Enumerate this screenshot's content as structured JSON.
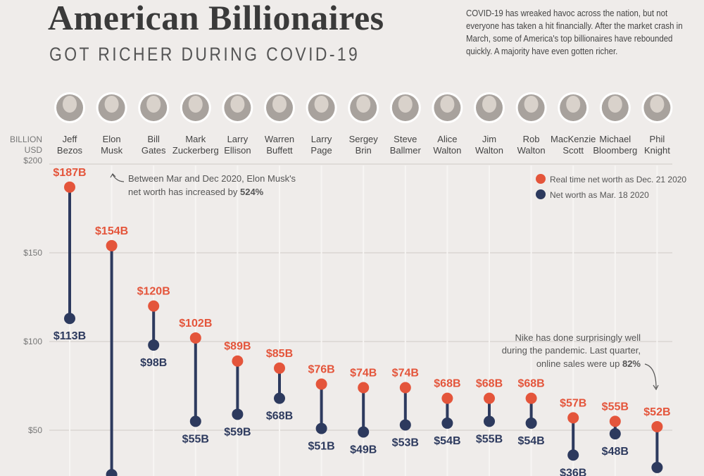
{
  "header": {
    "title": "American Billionaires",
    "subtitle": "GOT RICHER DURING COVID-19",
    "intro": "COVID-19 has wreaked havoc across the nation, but not everyone has taken a hit financially. After the market crash in March, some of America's top billionaires have rebounded quickly. A majority have even gotten richer."
  },
  "chart_data": {
    "type": "dumbbell",
    "unit_label": [
      "BILLION",
      "USD"
    ],
    "ylim": [
      0,
      200
    ],
    "yticks": [
      {
        "v": 200,
        "label": "$200"
      },
      {
        "v": 150,
        "label": "$150"
      },
      {
        "v": 100,
        "label": "$100"
      },
      {
        "v": 50,
        "label": "$50"
      }
    ],
    "grid": true,
    "legend_placement": "top-right",
    "colors": {
      "dec": "#e4553b",
      "mar": "#2d3a5e"
    },
    "series": [
      {
        "name": "Real time net worth as Dec. 21 2020",
        "key": "dec"
      },
      {
        "name": "Net worth as Mar. 18 2020",
        "key": "mar"
      }
    ],
    "people": [
      {
        "first": "Jeff",
        "last": "Bezos",
        "dec": 187,
        "dec_label": "$187B",
        "mar": 113,
        "mar_label": "$113B"
      },
      {
        "first": "Elon",
        "last": "Musk",
        "dec": 154,
        "dec_label": "$154B",
        "mar": 25
      },
      {
        "first": "Bill",
        "last": "Gates",
        "dec": 120,
        "dec_label": "$120B",
        "mar": 98,
        "mar_label": "$98B"
      },
      {
        "first": "Mark",
        "last": "Zuckerberg",
        "dec": 102,
        "dec_label": "$102B",
        "mar": 55,
        "mar_label": "$55B"
      },
      {
        "first": "Larry",
        "last": "Ellison",
        "dec": 89,
        "dec_label": "$89B",
        "mar": 59,
        "mar_label": "$59B"
      },
      {
        "first": "Warren",
        "last": "Buffett",
        "dec": 85,
        "dec_label": "$85B",
        "mar": 68,
        "mar_label": "$68B"
      },
      {
        "first": "Larry",
        "last": "Page",
        "dec": 76,
        "dec_label": "$76B",
        "mar": 51,
        "mar_label": "$51B"
      },
      {
        "first": "Sergey",
        "last": "Brin",
        "dec": 74,
        "dec_label": "$74B",
        "mar": 49,
        "mar_label": "$49B"
      },
      {
        "first": "Steve",
        "last": "Ballmer",
        "dec": 74,
        "dec_label": "$74B",
        "mar": 53,
        "mar_label": "$53B"
      },
      {
        "first": "Alice",
        "last": "Walton",
        "dec": 68,
        "dec_label": "$68B",
        "mar": 54,
        "mar_label": "$54B"
      },
      {
        "first": "Jim",
        "last": "Walton",
        "dec": 68,
        "dec_label": "$68B",
        "mar": 55,
        "mar_label": "$55B"
      },
      {
        "first": "Rob",
        "last": "Walton",
        "dec": 68,
        "dec_label": "$68B",
        "mar": 54,
        "mar_label": "$54B"
      },
      {
        "first": "MacKenzie",
        "last": "Scott",
        "dec": 57,
        "dec_label": "$57B",
        "mar": 36,
        "mar_label": "$36B"
      },
      {
        "first": "Michael",
        "last": "Bloomberg",
        "dec": 55,
        "dec_label": "$55B",
        "mar": 48,
        "mar_label": "$48B"
      },
      {
        "first": "Phil",
        "last": "Knight",
        "dec": 52,
        "dec_label": "$52B",
        "mar": 29
      }
    ],
    "annotations": [
      {
        "lines": [
          "Between Mar and Dec 2020, Elon Musk's",
          "net worth has increased by "
        ],
        "bold": "524%"
      },
      {
        "lines": [
          "Nike has done surprisingly well",
          "during the pandemic. Last quarter,",
          "online sales were up "
        ],
        "bold": "82%"
      }
    ]
  }
}
